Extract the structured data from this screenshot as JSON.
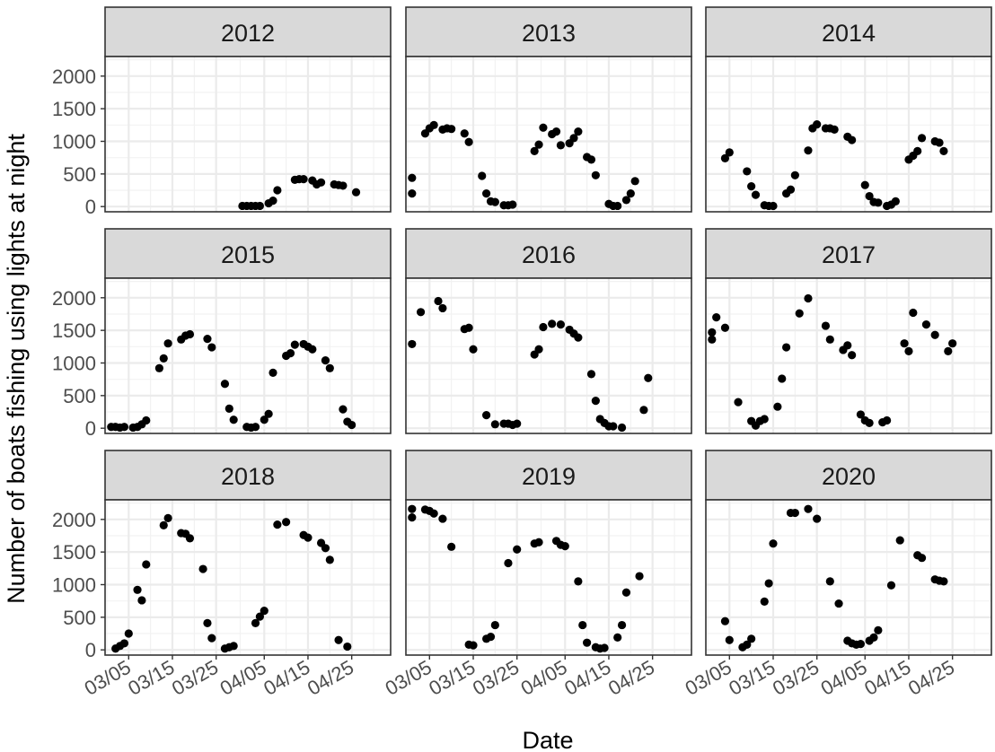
{
  "chart_data": {
    "type": "scatter",
    "facet_by": "year",
    "xlabel": "Date",
    "ylabel": "Number of boats fishing using lights at night",
    "ylim": [
      0,
      2300
    ],
    "y_ticks": [
      0,
      500,
      1000,
      1500,
      2000
    ],
    "xlim": [
      "02/28",
      "05/03"
    ],
    "x_ticks": [
      "03/05",
      "03/15",
      "03/25",
      "04/05",
      "04/15",
      "04/25"
    ],
    "grid": true,
    "marker_color": "#000000",
    "panels": [
      {
        "title": "2012",
        "points": [
          [
            "03/31",
            10
          ],
          [
            "04/01",
            10
          ],
          [
            "04/02",
            10
          ],
          [
            "04/03",
            10
          ],
          [
            "04/04",
            10
          ],
          [
            "04/06",
            50
          ],
          [
            "04/07",
            90
          ],
          [
            "04/08",
            250
          ],
          [
            "04/12",
            410
          ],
          [
            "04/13",
            420
          ],
          [
            "04/14",
            420
          ],
          [
            "04/16",
            400
          ],
          [
            "04/17",
            340
          ],
          [
            "04/18",
            370
          ],
          [
            "04/21",
            340
          ],
          [
            "04/22",
            330
          ],
          [
            "04/23",
            320
          ],
          [
            "04/26",
            220
          ]
        ]
      },
      {
        "title": "2013",
        "points": [
          [
            "02/29",
            200
          ],
          [
            "03/01",
            440
          ],
          [
            "03/04",
            1120
          ],
          [
            "03/05",
            1200
          ],
          [
            "03/06",
            1250
          ],
          [
            "03/08",
            1180
          ],
          [
            "03/09",
            1200
          ],
          [
            "03/10",
            1190
          ],
          [
            "03/13",
            1120
          ],
          [
            "03/14",
            990
          ],
          [
            "03/17",
            470
          ],
          [
            "03/18",
            200
          ],
          [
            "03/19",
            80
          ],
          [
            "03/20",
            70
          ],
          [
            "03/22",
            20
          ],
          [
            "03/23",
            20
          ],
          [
            "03/24",
            30
          ],
          [
            "03/29",
            850
          ],
          [
            "03/30",
            950
          ],
          [
            "03/31",
            1210
          ],
          [
            "04/02",
            1110
          ],
          [
            "04/03",
            1150
          ],
          [
            "04/04",
            940
          ],
          [
            "04/06",
            970
          ],
          [
            "04/07",
            1050
          ],
          [
            "04/08",
            1150
          ],
          [
            "04/10",
            760
          ],
          [
            "04/11",
            720
          ],
          [
            "04/12",
            480
          ],
          [
            "04/15",
            40
          ],
          [
            "04/16",
            10
          ],
          [
            "04/17",
            10
          ],
          [
            "04/19",
            100
          ],
          [
            "04/20",
            200
          ],
          [
            "04/21",
            390
          ]
        ]
      },
      {
        "title": "2014",
        "points": [
          [
            "03/04",
            740
          ],
          [
            "03/05",
            830
          ],
          [
            "03/09",
            540
          ],
          [
            "03/10",
            310
          ],
          [
            "03/11",
            180
          ],
          [
            "03/13",
            20
          ],
          [
            "03/14",
            10
          ],
          [
            "03/15",
            10
          ],
          [
            "03/18",
            200
          ],
          [
            "03/19",
            260
          ],
          [
            "03/20",
            480
          ],
          [
            "03/23",
            860
          ],
          [
            "03/24",
            1200
          ],
          [
            "03/25",
            1260
          ],
          [
            "03/27",
            1200
          ],
          [
            "03/28",
            1200
          ],
          [
            "03/29",
            1180
          ],
          [
            "04/01",
            1070
          ],
          [
            "04/02",
            1020
          ],
          [
            "04/05",
            330
          ],
          [
            "04/06",
            160
          ],
          [
            "04/07",
            70
          ],
          [
            "04/08",
            60
          ],
          [
            "04/10",
            10
          ],
          [
            "04/11",
            30
          ],
          [
            "04/12",
            80
          ],
          [
            "04/15",
            720
          ],
          [
            "04/16",
            780
          ],
          [
            "04/17",
            850
          ],
          [
            "04/18",
            1050
          ],
          [
            "04/21",
            1000
          ],
          [
            "04/22",
            980
          ],
          [
            "04/23",
            850
          ]
        ]
      }
    ],
    "panels_row2": [
      {
        "title": "2015",
        "points": [
          [
            "03/01",
            20
          ],
          [
            "03/02",
            20
          ],
          [
            "03/03",
            10
          ],
          [
            "03/04",
            20
          ],
          [
            "03/06",
            10
          ],
          [
            "03/07",
            20
          ],
          [
            "03/08",
            60
          ],
          [
            "03/09",
            120
          ],
          [
            "03/12",
            920
          ],
          [
            "03/13",
            1070
          ],
          [
            "03/14",
            1300
          ],
          [
            "03/17",
            1360
          ],
          [
            "03/18",
            1420
          ],
          [
            "03/19",
            1440
          ],
          [
            "03/23",
            1370
          ],
          [
            "03/24",
            1240
          ],
          [
            "03/27",
            680
          ],
          [
            "03/28",
            300
          ],
          [
            "03/29",
            130
          ],
          [
            "04/01",
            20
          ],
          [
            "04/02",
            10
          ],
          [
            "04/03",
            20
          ],
          [
            "04/05",
            130
          ],
          [
            "04/06",
            220
          ],
          [
            "04/07",
            850
          ],
          [
            "04/10",
            1110
          ],
          [
            "04/11",
            1150
          ],
          [
            "04/12",
            1280
          ],
          [
            "04/14",
            1290
          ],
          [
            "04/15",
            1250
          ],
          [
            "04/16",
            1210
          ],
          [
            "04/19",
            1040
          ],
          [
            "04/20",
            920
          ],
          [
            "04/23",
            290
          ],
          [
            "04/24",
            100
          ],
          [
            "04/25",
            50
          ]
        ]
      },
      {
        "title": "2016",
        "points": [
          [
            "03/01",
            1290
          ],
          [
            "03/03",
            1780
          ],
          [
            "03/07",
            1950
          ],
          [
            "03/08",
            1840
          ],
          [
            "03/13",
            1520
          ],
          [
            "03/14",
            1540
          ],
          [
            "03/15",
            1210
          ],
          [
            "03/18",
            200
          ],
          [
            "03/20",
            60
          ],
          [
            "03/22",
            70
          ],
          [
            "03/23",
            70
          ],
          [
            "03/24",
            50
          ],
          [
            "03/25",
            70
          ],
          [
            "03/29",
            1130
          ],
          [
            "03/30",
            1210
          ],
          [
            "03/31",
            1550
          ],
          [
            "04/02",
            1600
          ],
          [
            "04/04",
            1590
          ],
          [
            "04/06",
            1510
          ],
          [
            "04/07",
            1450
          ],
          [
            "04/08",
            1390
          ],
          [
            "04/11",
            830
          ],
          [
            "04/12",
            420
          ],
          [
            "04/13",
            140
          ],
          [
            "04/14",
            80
          ],
          [
            "04/15",
            30
          ],
          [
            "04/16",
            30
          ],
          [
            "04/18",
            10
          ],
          [
            "04/23",
            280
          ],
          [
            "04/24",
            770
          ]
        ]
      },
      {
        "title": "2017",
        "points": [
          [
            "02/29",
            1360
          ],
          [
            "03/01",
            1470
          ],
          [
            "03/02",
            1700
          ],
          [
            "03/04",
            1540
          ],
          [
            "03/07",
            400
          ],
          [
            "03/10",
            110
          ],
          [
            "03/11",
            40
          ],
          [
            "03/12",
            110
          ],
          [
            "03/13",
            140
          ],
          [
            "03/16",
            330
          ],
          [
            "03/17",
            760
          ],
          [
            "03/18",
            1240
          ],
          [
            "03/21",
            1760
          ],
          [
            "03/23",
            1990
          ],
          [
            "03/27",
            1570
          ],
          [
            "03/28",
            1360
          ],
          [
            "03/31",
            1200
          ],
          [
            "04/01",
            1270
          ],
          [
            "04/02",
            1120
          ],
          [
            "04/04",
            210
          ],
          [
            "04/05",
            120
          ],
          [
            "04/06",
            80
          ],
          [
            "04/09",
            90
          ],
          [
            "04/10",
            120
          ],
          [
            "04/14",
            1300
          ],
          [
            "04/15",
            1180
          ],
          [
            "04/16",
            1770
          ],
          [
            "04/19",
            1590
          ],
          [
            "04/21",
            1430
          ],
          [
            "04/24",
            1180
          ],
          [
            "04/25",
            1300
          ]
        ]
      }
    ],
    "panels_row3": [
      {
        "title": "2018",
        "points": [
          [
            "03/02",
            20
          ],
          [
            "03/03",
            60
          ],
          [
            "03/04",
            100
          ],
          [
            "03/05",
            250
          ],
          [
            "03/07",
            920
          ],
          [
            "03/08",
            760
          ],
          [
            "03/09",
            1310
          ],
          [
            "03/13",
            1910
          ],
          [
            "03/14",
            2020
          ],
          [
            "03/17",
            1790
          ],
          [
            "03/18",
            1780
          ],
          [
            "03/19",
            1710
          ],
          [
            "03/22",
            1240
          ],
          [
            "03/23",
            410
          ],
          [
            "03/24",
            180
          ],
          [
            "03/27",
            20
          ],
          [
            "03/28",
            40
          ],
          [
            "03/29",
            60
          ],
          [
            "04/03",
            410
          ],
          [
            "04/04",
            510
          ],
          [
            "04/05",
            600
          ],
          [
            "04/08",
            1920
          ],
          [
            "04/10",
            1960
          ],
          [
            "04/14",
            1760
          ],
          [
            "04/15",
            1720
          ],
          [
            "04/18",
            1640
          ],
          [
            "04/19",
            1560
          ],
          [
            "04/20",
            1380
          ],
          [
            "04/22",
            150
          ],
          [
            "04/24",
            50
          ]
        ]
      },
      {
        "title": "2019",
        "points": [
          [
            "02/29",
            2030
          ],
          [
            "03/01",
            2160
          ],
          [
            "03/04",
            2150
          ],
          [
            "03/05",
            2130
          ],
          [
            "03/06",
            2090
          ],
          [
            "03/08",
            2010
          ],
          [
            "03/10",
            1580
          ],
          [
            "03/14",
            80
          ],
          [
            "03/15",
            70
          ],
          [
            "03/18",
            170
          ],
          [
            "03/19",
            200
          ],
          [
            "03/20",
            380
          ],
          [
            "03/23",
            1330
          ],
          [
            "03/25",
            1540
          ],
          [
            "03/29",
            1630
          ],
          [
            "03/30",
            1650
          ],
          [
            "04/03",
            1670
          ],
          [
            "04/04",
            1610
          ],
          [
            "04/05",
            1590
          ],
          [
            "04/08",
            1050
          ],
          [
            "04/09",
            380
          ],
          [
            "04/10",
            110
          ],
          [
            "04/12",
            40
          ],
          [
            "04/13",
            20
          ],
          [
            "04/14",
            30
          ],
          [
            "04/17",
            190
          ],
          [
            "04/18",
            380
          ],
          [
            "04/19",
            880
          ],
          [
            "04/22",
            1130
          ]
        ]
      },
      {
        "title": "2020",
        "points": [
          [
            "03/04",
            440
          ],
          [
            "03/05",
            150
          ],
          [
            "03/08",
            40
          ],
          [
            "03/09",
            80
          ],
          [
            "03/10",
            170
          ],
          [
            "03/13",
            740
          ],
          [
            "03/14",
            1020
          ],
          [
            "03/15",
            1630
          ],
          [
            "03/19",
            2100
          ],
          [
            "03/20",
            2100
          ],
          [
            "03/23",
            2160
          ],
          [
            "03/25",
            2010
          ],
          [
            "03/28",
            1050
          ],
          [
            "03/30",
            710
          ],
          [
            "04/01",
            140
          ],
          [
            "04/02",
            100
          ],
          [
            "04/03",
            80
          ],
          [
            "04/04",
            90
          ],
          [
            "04/06",
            140
          ],
          [
            "04/07",
            190
          ],
          [
            "04/08",
            300
          ],
          [
            "04/11",
            990
          ],
          [
            "04/13",
            1680
          ],
          [
            "04/17",
            1450
          ],
          [
            "04/18",
            1410
          ],
          [
            "04/21",
            1080
          ],
          [
            "04/22",
            1060
          ],
          [
            "04/23",
            1050
          ]
        ]
      }
    ]
  }
}
